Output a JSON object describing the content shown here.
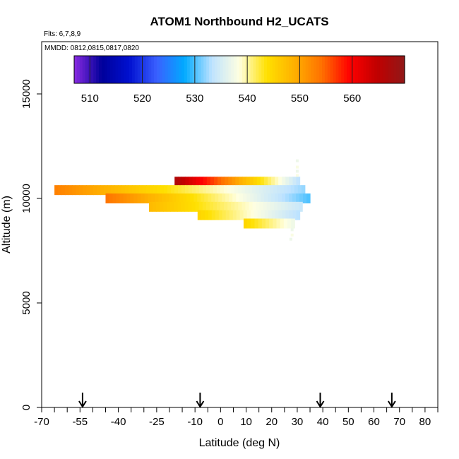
{
  "chart_data": {
    "type": "heatmap",
    "title": "ATOM1 Northbound H2_UCATS",
    "subtitle_flights": "Flts: 6,7,8,9",
    "subtitle_dates": "MMDD: 0812,0815,0817,0820",
    "xlabel": "Latitude (deg N)",
    "ylabel": "Altitude (m)",
    "xlim": [
      -70,
      85
    ],
    "ylim": [
      0,
      17500
    ],
    "x_ticks": [
      -70,
      -55,
      -40,
      -25,
      -10,
      0,
      10,
      20,
      30,
      40,
      50,
      60,
      70,
      80
    ],
    "y_ticks": [
      0,
      5000,
      10000,
      15000
    ],
    "arrows_latitude": [
      -54,
      -8,
      39,
      67
    ],
    "colorbar": {
      "min": 507,
      "max": 570,
      "ticks": [
        510,
        520,
        530,
        540,
        550,
        560
      ],
      "colors": [
        "#8a2be2",
        "#00009a",
        "#0010d0",
        "#3a60ff",
        "#00aaff",
        "#bfe3ff",
        "#ffffe0",
        "#ffe000",
        "#ffb000",
        "#ff7000",
        "#ff0000",
        "#c00000",
        "#901818"
      ]
    },
    "bands": [
      {
        "altitude": 10800,
        "lat_start": -18,
        "lat_end": 31,
        "v_start": 567,
        "v_end": 533
      },
      {
        "altitude": 10400,
        "lat_start": -65,
        "lat_end": 33,
        "v_start": 553,
        "v_end": 532
      },
      {
        "altitude": 10000,
        "lat_start": -45,
        "lat_end": 35,
        "v_start": 554,
        "v_end": 530
      },
      {
        "altitude": 9600,
        "lat_start": -28,
        "lat_end": 32,
        "v_start": 548,
        "v_end": 534
      },
      {
        "altitude": 9200,
        "lat_start": -9,
        "lat_end": 31,
        "v_start": 545,
        "v_end": 533
      },
      {
        "altitude": 8800,
        "lat_start": 9,
        "lat_end": 29,
        "v_start": 545,
        "v_end": 537
      }
    ],
    "scatter_points": [
      {
        "lat": 30,
        "alt": 11800,
        "value": 537
      },
      {
        "lat": 30,
        "alt": 11500,
        "value": 538
      },
      {
        "lat": 30,
        "alt": 11300,
        "value": 537
      },
      {
        "lat": 30,
        "alt": 11100,
        "value": 538
      },
      {
        "lat": 28,
        "alt": 8500,
        "value": 537
      },
      {
        "lat": 28,
        "alt": 8250,
        "value": 538
      },
      {
        "lat": 27.5,
        "alt": 8050,
        "value": 537
      }
    ],
    "grid": false
  }
}
